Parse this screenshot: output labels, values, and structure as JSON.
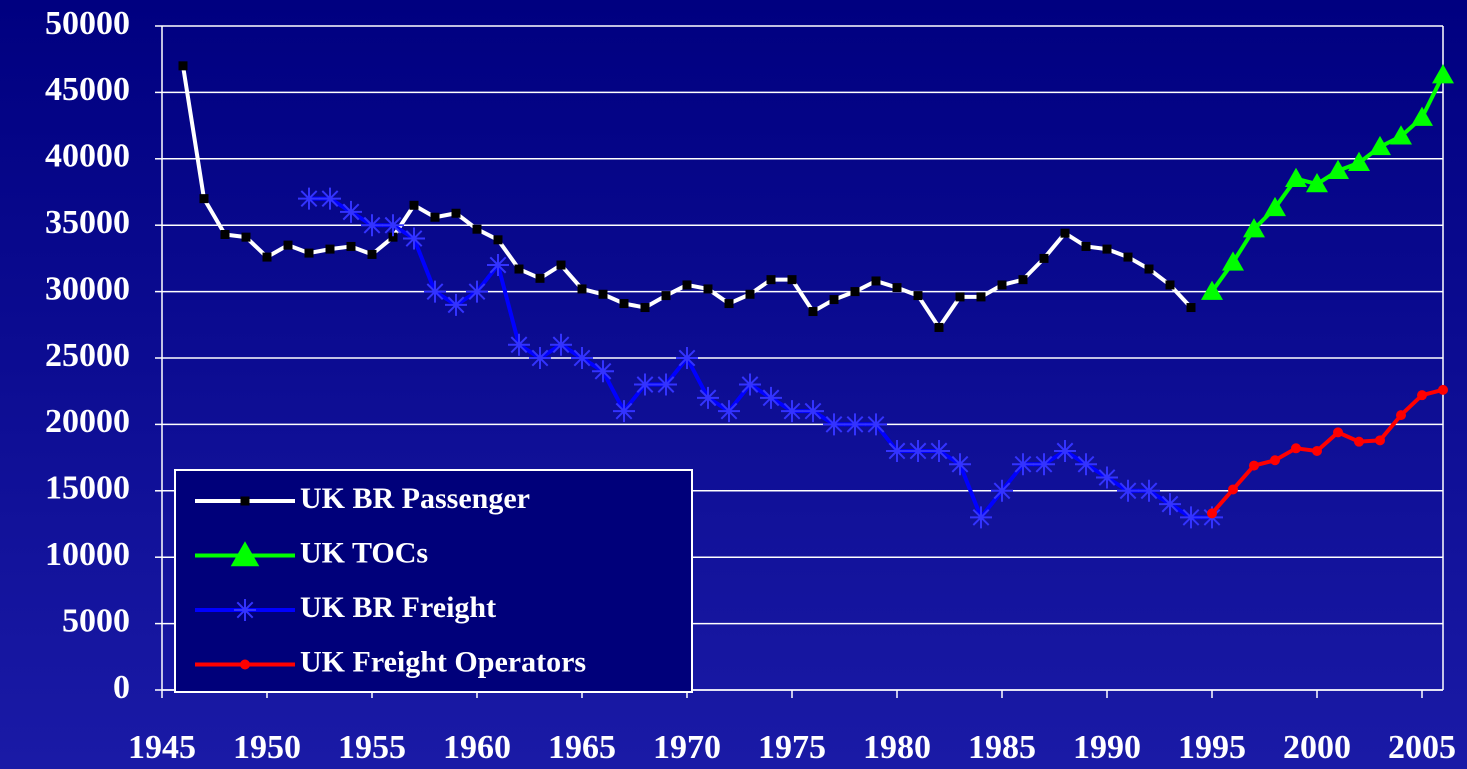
{
  "chart_data": {
    "type": "line",
    "xlim": [
      1945,
      2006
    ],
    "xticks": [
      1945,
      1950,
      1955,
      1960,
      1965,
      1970,
      1975,
      1980,
      1985,
      1990,
      1995,
      2000,
      2005
    ],
    "ylim": [
      0,
      50000
    ],
    "yticks": [
      0,
      5000,
      10000,
      15000,
      20000,
      25000,
      30000,
      35000,
      40000,
      45000,
      50000
    ],
    "grid": true,
    "legend": "lower left",
    "series": [
      {
        "name": "UK BR Passenger",
        "color": "#ffffff",
        "marker": "square",
        "marker_color": "#000000",
        "x": [
          1946,
          1947,
          1948,
          1949,
          1950,
          1951,
          1952,
          1953,
          1954,
          1955,
          1956,
          1957,
          1958,
          1959,
          1960,
          1961,
          1962,
          1963,
          1964,
          1965,
          1966,
          1967,
          1968,
          1969,
          1970,
          1971,
          1972,
          1973,
          1974,
          1975,
          1976,
          1977,
          1978,
          1979,
          1980,
          1981,
          1982,
          1983,
          1984,
          1985,
          1986,
          1987,
          1988,
          1989,
          1990,
          1991,
          1992,
          1993,
          1994
        ],
        "values": [
          47000,
          37000,
          34300,
          34100,
          32600,
          33500,
          32900,
          33200,
          33400,
          32800,
          34100,
          36500,
          35600,
          35900,
          34700,
          33900,
          31700,
          31000,
          32000,
          30200,
          29800,
          29100,
          28800,
          29700,
          30500,
          30200,
          29100,
          29800,
          30900,
          30900,
          28500,
          29400,
          30000,
          30800,
          30300,
          29700,
          27300,
          29600,
          29600,
          30500,
          30900,
          32500,
          34400,
          33400,
          33200,
          32600,
          31700,
          30500,
          28800
        ]
      },
      {
        "name": "UK TOCs",
        "color": "#00ff00",
        "marker": "triangle",
        "marker_color": "#00ff00",
        "x": [
          1995,
          1996,
          1997,
          1998,
          1999,
          2000,
          2001,
          2002,
          2003,
          2004,
          2005,
          2006
        ],
        "values": [
          30000,
          32200,
          34700,
          36300,
          38500,
          38100,
          39100,
          39700,
          40900,
          41700,
          43100,
          46300
        ]
      },
      {
        "name": "UK BR Freight",
        "color": "#0000ff",
        "marker": "asterisk",
        "marker_color": "#3333ff",
        "x": [
          1952,
          1953,
          1954,
          1955,
          1956,
          1957,
          1958,
          1959,
          1960,
          1961,
          1962,
          1963,
          1964,
          1965,
          1966,
          1967,
          1968,
          1969,
          1970,
          1971,
          1972,
          1973,
          1974,
          1975,
          1976,
          1977,
          1978,
          1979,
          1980,
          1981,
          1982,
          1983,
          1984,
          1985,
          1986,
          1987,
          1988,
          1989,
          1990,
          1991,
          1992,
          1993,
          1994,
          1995
        ],
        "values": [
          37000,
          37000,
          36000,
          35000,
          35000,
          34000,
          30000,
          29000,
          30000,
          32000,
          26000,
          25000,
          26000,
          25000,
          24000,
          21000,
          23000,
          23000,
          25000,
          22000,
          21000,
          23000,
          22000,
          21000,
          21000,
          20000,
          20000,
          20000,
          18000,
          18000,
          18000,
          17000,
          13000,
          15000,
          17000,
          17000,
          18000,
          17000,
          16000,
          15000,
          15000,
          14000,
          13000,
          13000
        ]
      },
      {
        "name": "UK Freight Operators",
        "color": "#ff0000",
        "marker": "circle",
        "marker_color": "#ff0000",
        "x": [
          1995,
          1996,
          1997,
          1998,
          1999,
          2000,
          2001,
          2002,
          2003,
          2004,
          2005,
          2006
        ],
        "values": [
          13300,
          15100,
          16900,
          17300,
          18200,
          18000,
          19400,
          18700,
          18800,
          20700,
          22200,
          22600
        ]
      }
    ]
  }
}
